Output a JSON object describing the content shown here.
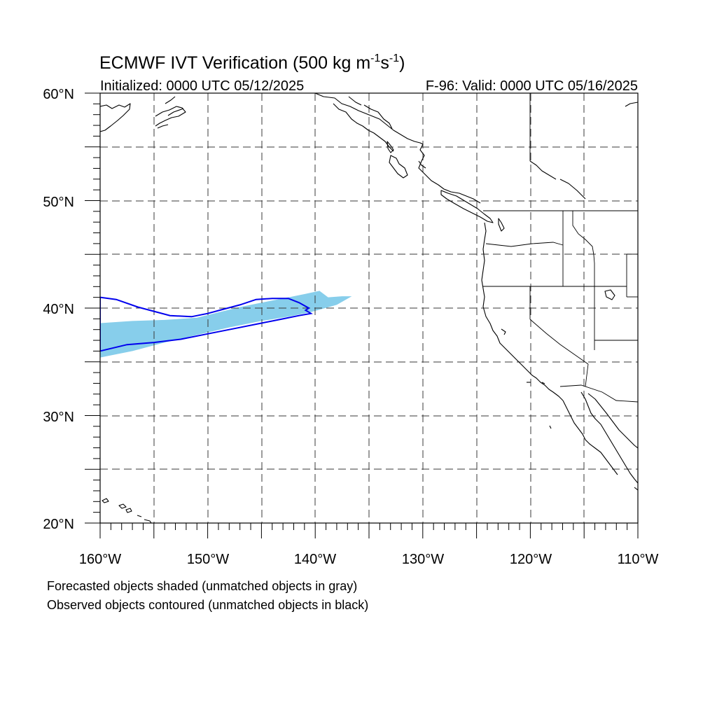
{
  "title": {
    "main": "ECMWF IVT Verification (500 kg m",
    "sup1": "-1",
    "mid": "s",
    "sup2": "-1",
    "end": ")"
  },
  "initialized": "Initialized: 0000 UTC 05/12/2025",
  "valid": "F-96: Valid: 0000 UTC 05/16/2025",
  "lat_labels": [
    "60°N",
    "50°N",
    "40°N",
    "30°N",
    "20°N"
  ],
  "lon_labels": [
    "160°W",
    "150°W",
    "140°W",
    "130°W",
    "120°W",
    "110°W"
  ],
  "footer": {
    "line1": "Forecasted objects shaded (unmatched objects in gray)",
    "line2": "Observed objects contoured (unmatched objects in black)"
  },
  "map_extent": {
    "lon": [
      -160,
      -110
    ],
    "lat": [
      20,
      60
    ],
    "grid_step_deg": 5
  },
  "colors": {
    "forecast_fill": "#87CEEB",
    "observed_contour": "#0000EE",
    "coastline": "#000000",
    "gridline": "#3a3a3a"
  },
  "forecast_object": [
    [
      -160,
      38.6
    ],
    [
      -157,
      38.8
    ],
    [
      -154,
      38.9
    ],
    [
      -151,
      39.1
    ],
    [
      -149,
      39.6
    ],
    [
      -147,
      40.1
    ],
    [
      -145,
      40.5
    ],
    [
      -143,
      40.9
    ],
    [
      -141,
      41.3
    ],
    [
      -139.6,
      41.6
    ],
    [
      -138.8,
      41.0
    ],
    [
      -137.5,
      41.1
    ],
    [
      -136.6,
      41.1
    ],
    [
      -138,
      40.3
    ],
    [
      -140.5,
      39.6
    ],
    [
      -142.5,
      39.2
    ],
    [
      -145,
      38.8
    ],
    [
      -148,
      38.2
    ],
    [
      -151,
      37.5
    ],
    [
      -154,
      36.8
    ],
    [
      -157,
      36.0
    ],
    [
      -160,
      35.4
    ]
  ],
  "observed_object": [
    [
      -160,
      41.0
    ],
    [
      -158.5,
      40.8
    ],
    [
      -156.5,
      40.1
    ],
    [
      -155,
      39.7
    ],
    [
      -153.5,
      39.3
    ],
    [
      -151.5,
      39.2
    ],
    [
      -150,
      39.5
    ],
    [
      -148.5,
      39.9
    ],
    [
      -147,
      40.3
    ],
    [
      -145.5,
      40.8
    ],
    [
      -144,
      40.9
    ],
    [
      -142.5,
      40.9
    ],
    [
      -141.5,
      40.5
    ],
    [
      -140.6,
      40.0
    ],
    [
      -140.9,
      39.8
    ],
    [
      -140.4,
      39.5
    ],
    [
      -141.5,
      39.3
    ],
    [
      -143,
      39.0
    ],
    [
      -145,
      38.6
    ],
    [
      -147.5,
      38.1
    ],
    [
      -150,
      37.6
    ],
    [
      -152.5,
      37.1
    ],
    [
      -155,
      36.8
    ],
    [
      -157.5,
      36.6
    ],
    [
      -160,
      36.0
    ]
  ]
}
